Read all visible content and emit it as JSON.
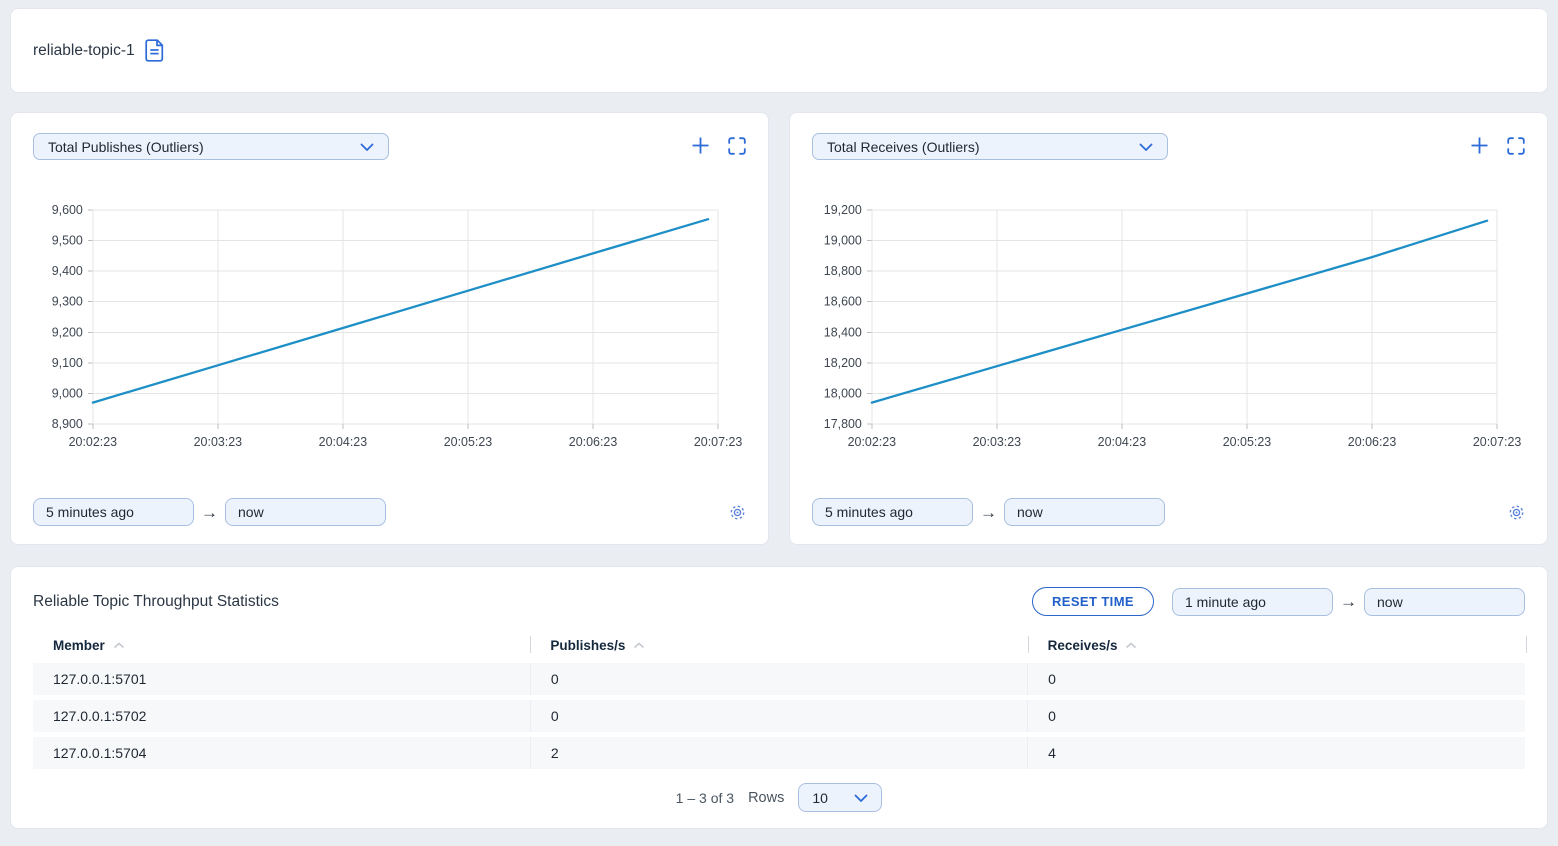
{
  "page": {
    "title": "reliable-topic-1"
  },
  "colors": {
    "accent_blue": "#2d6bd8",
    "line_blue": "#1e8fc6",
    "input_bg": "#edf3fc",
    "input_border": "#a9bfe0",
    "grid": "#e4e4e4"
  },
  "charts": [
    {
      "selector_label": "Total Publishes (Outliers)",
      "from_value": "5 minutes ago",
      "to_value": "now"
    },
    {
      "selector_label": "Total Receives (Outliers)",
      "from_value": "5 minutes ago",
      "to_value": "now"
    }
  ],
  "chart_data": [
    {
      "type": "line",
      "title": "Total Publishes (Outliers)",
      "x_labels": [
        "20:02:23",
        "20:03:23",
        "20:04:23",
        "20:05:23",
        "20:06:23",
        "20:07:23"
      ],
      "x_tick_minutes": [
        0,
        1,
        2,
        3,
        4,
        5
      ],
      "x_minutes": [
        0,
        1,
        2,
        3,
        4,
        4.92
      ],
      "values": [
        8970,
        9092,
        9214,
        9336,
        9458,
        9570
      ],
      "ylim": [
        8900,
        9600
      ],
      "y_ticks": [
        8900,
        9000,
        9100,
        9200,
        9300,
        9400,
        9500,
        9600
      ],
      "y_tick_labels": [
        "8,900",
        "9,000",
        "9,100",
        "9,200",
        "9,300",
        "9,400",
        "9,500",
        "9,600"
      ],
      "grid": true,
      "legend": "none",
      "line_color": "#1e8fc6"
    },
    {
      "type": "line",
      "title": "Total Receives (Outliers)",
      "x_labels": [
        "20:02:23",
        "20:03:23",
        "20:04:23",
        "20:05:23",
        "20:06:23",
        "20:07:23"
      ],
      "x_tick_minutes": [
        0,
        1,
        2,
        3,
        4,
        5
      ],
      "x_minutes": [
        0,
        1,
        2,
        3,
        4,
        4.92
      ],
      "values": [
        17940,
        18178,
        18416,
        18654,
        18892,
        19130
      ],
      "ylim": [
        17800,
        19200
      ],
      "y_ticks": [
        17800,
        18000,
        18200,
        18400,
        18600,
        18800,
        19000,
        19200
      ],
      "y_tick_labels": [
        "17,800",
        "18,000",
        "18,200",
        "18,400",
        "18,600",
        "18,800",
        "19,000",
        "19,200"
      ],
      "grid": true,
      "legend": "none",
      "line_color": "#1e8fc6"
    }
  ],
  "stats": {
    "title": "Reliable Topic Throughput Statistics",
    "reset_button": "RESET TIME",
    "from_value": "1 minute ago",
    "to_value": "now",
    "columns": [
      "Member",
      "Publishes/s",
      "Receives/s"
    ],
    "rows": [
      {
        "member": "127.0.0.1:5701",
        "publishes": "0",
        "receives": "0"
      },
      {
        "member": "127.0.0.1:5702",
        "publishes": "0",
        "receives": "0"
      },
      {
        "member": "127.0.0.1:5704",
        "publishes": "2",
        "receives": "4"
      }
    ],
    "pagination": {
      "range": "1 – 3 of 3",
      "rows_label": "Rows",
      "rows_per_page": "10"
    }
  }
}
